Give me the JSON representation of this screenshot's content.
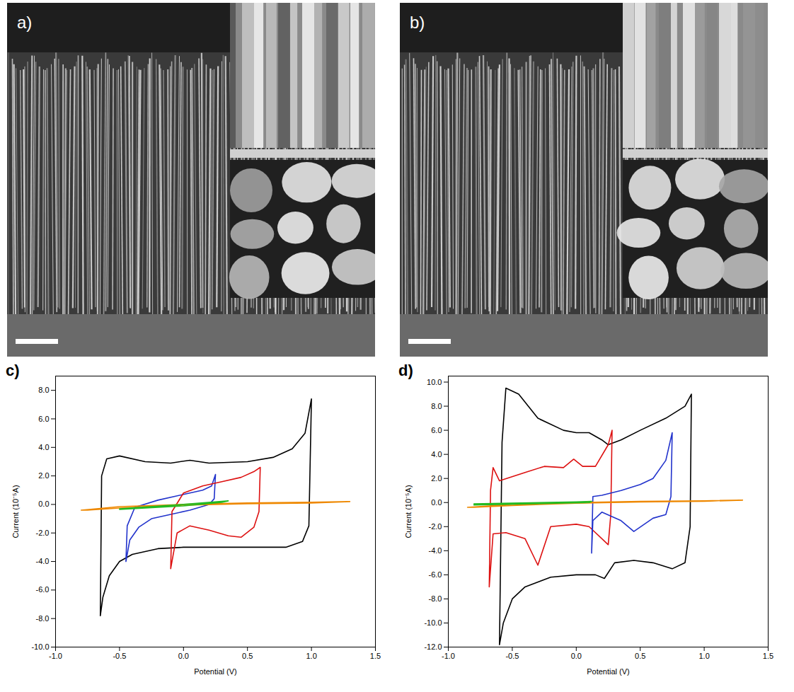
{
  "images": [
    {
      "label": "a)"
    },
    {
      "label": "b)"
    }
  ],
  "chart_data": [
    {
      "type": "line",
      "title": "c)",
      "x_label": "Potential (V)",
      "y_label": "Current (10⁻⁵A)",
      "xlim": [
        -1.0,
        1.5
      ],
      "xticks": [
        {
          "value": -1.0,
          "label": "-1.0"
        },
        -0.5,
        {
          "value": 0.0,
          "label": "0.0"
        },
        0.5,
        {
          "value": 1.0,
          "label": "1.0"
        },
        1.5
      ],
      "ylim": [
        -10.0,
        9.0
      ],
      "yticks": [
        {
          "value": -10.0,
          "label": "-10.0"
        },
        {
          "value": -8.0,
          "label": "-8.0"
        },
        {
          "value": -6.0,
          "label": "-6.0"
        },
        {
          "value": -4.0,
          "label": "-4.0"
        },
        {
          "value": -2.0,
          "label": "-2.0"
        },
        {
          "value": 0.0,
          "label": "0.0"
        },
        {
          "value": 2.0,
          "label": "2.0"
        },
        {
          "value": 4.0,
          "label": "4.0"
        },
        {
          "value": 6.0,
          "label": "6.0"
        },
        {
          "value": 8.0,
          "label": "8.0"
        }
      ],
      "grid": false,
      "series": [
        {
          "color": "#000000",
          "x": [
            -0.65,
            -0.64,
            -0.6,
            -0.5,
            -0.3,
            -0.1,
            0.05,
            0.2,
            0.5,
            0.7,
            0.85,
            0.95,
            1.0,
            0.98,
            0.93,
            0.8,
            0.5,
            0.2,
            0.0,
            -0.2,
            -0.4,
            -0.5,
            -0.58,
            -0.63,
            -0.65
          ],
          "values": [
            -7.8,
            2.0,
            3.2,
            3.4,
            3.0,
            2.9,
            3.1,
            2.9,
            3.0,
            3.3,
            3.9,
            5.0,
            7.4,
            -1.5,
            -2.6,
            -3.0,
            -3.0,
            -3.0,
            -3.0,
            -3.1,
            -3.5,
            -4.0,
            -5.0,
            -6.5,
            -7.8
          ]
        },
        {
          "color": "#2233cc",
          "x": [
            -0.45,
            -0.44,
            -0.38,
            -0.2,
            0.0,
            0.15,
            0.22,
            0.25,
            0.24,
            0.2,
            0.05,
            -0.1,
            -0.25,
            -0.35,
            -0.42,
            -0.45
          ],
          "values": [
            -4.0,
            -1.5,
            -0.2,
            0.3,
            0.7,
            1.0,
            1.3,
            2.1,
            0.4,
            0.0,
            -0.4,
            -0.7,
            -1.0,
            -1.6,
            -2.5,
            -4.0
          ]
        },
        {
          "color": "#dd1111",
          "x": [
            -0.1,
            -0.09,
            0.0,
            0.15,
            0.3,
            0.45,
            0.55,
            0.6,
            0.59,
            0.55,
            0.45,
            0.35,
            0.2,
            0.05,
            -0.05,
            -0.1
          ],
          "values": [
            -4.5,
            -0.5,
            0.8,
            1.3,
            1.6,
            1.9,
            2.3,
            2.6,
            -0.5,
            -1.6,
            -2.3,
            -2.2,
            -1.8,
            -1.5,
            -2.0,
            -4.5
          ]
        },
        {
          "color": "#ee8800",
          "x": [
            -0.8,
            -0.5,
            0.0,
            0.5,
            1.0,
            1.3,
            1.0,
            0.5,
            0.0,
            -0.5,
            -0.75,
            -0.8
          ],
          "values": [
            -0.4,
            -0.15,
            0.0,
            0.1,
            0.15,
            0.2,
            0.1,
            0.05,
            -0.05,
            -0.25,
            -0.4,
            -0.4
          ]
        },
        {
          "color": "#22bb22",
          "x": [
            -0.5,
            0.0,
            0.35,
            0.3,
            0.0,
            -0.5
          ],
          "values": [
            -0.3,
            0.0,
            0.25,
            0.15,
            -0.1,
            -0.35
          ]
        }
      ]
    },
    {
      "type": "line",
      "title": "d)",
      "x_label": "Potential (V)",
      "y_label": "Current (10⁻⁵A)",
      "xlim": [
        -1.0,
        1.5
      ],
      "xticks": [
        {
          "value": -1.0,
          "label": "-1.0"
        },
        -0.5,
        {
          "value": 0.0,
          "label": "0.0"
        },
        0.5,
        {
          "value": 1.0,
          "label": "1.0"
        },
        1.5
      ],
      "ylim": [
        -12.0,
        10.5
      ],
      "yticks": [
        {
          "value": -12.0,
          "label": "-12.0"
        },
        {
          "value": -10.0,
          "label": "-10.0"
        },
        {
          "value": -8.0,
          "label": "-8.0"
        },
        {
          "value": -6.0,
          "label": "-6.0"
        },
        {
          "value": -4.0,
          "label": "-4.0"
        },
        {
          "value": -2.0,
          "label": "-2.0"
        },
        {
          "value": 0.0,
          "label": "0.0"
        },
        {
          "value": 2.0,
          "label": "2.0"
        },
        {
          "value": 4.0,
          "label": "4.0"
        },
        {
          "value": 6.0,
          "label": "6.0"
        },
        {
          "value": 8.0,
          "label": "8.0"
        },
        {
          "value": 10.0,
          "label": "10.0"
        }
      ],
      "grid": false,
      "series": [
        {
          "color": "#000000",
          "x": [
            -0.6,
            -0.58,
            -0.55,
            -0.45,
            -0.3,
            -0.1,
            0.0,
            0.1,
            0.2,
            0.25,
            0.35,
            0.5,
            0.7,
            0.85,
            0.9,
            0.89,
            0.85,
            0.75,
            0.6,
            0.45,
            0.3,
            0.22,
            0.15,
            0.0,
            -0.2,
            -0.4,
            -0.5,
            -0.57,
            -0.6
          ],
          "values": [
            -11.8,
            5.0,
            9.5,
            9.0,
            7.0,
            6.0,
            5.8,
            5.8,
            5.2,
            4.8,
            5.2,
            6.0,
            7.0,
            8.0,
            9.0,
            -2.0,
            -5.0,
            -5.5,
            -5.0,
            -4.8,
            -5.0,
            -6.3,
            -6.0,
            -6.0,
            -6.2,
            -7.0,
            -8.0,
            -10.0,
            -11.8
          ]
        },
        {
          "color": "#dd1111",
          "x": [
            -0.68,
            -0.67,
            -0.65,
            -0.6,
            -0.4,
            -0.25,
            -0.1,
            -0.02,
            0.05,
            0.15,
            0.25,
            0.28,
            0.27,
            0.25,
            0.1,
            0.0,
            -0.2,
            -0.3,
            -0.4,
            -0.55,
            -0.65,
            -0.68
          ],
          "values": [
            -7.0,
            1.0,
            2.9,
            1.8,
            2.5,
            3.0,
            2.9,
            3.6,
            3.0,
            3.0,
            4.8,
            6.0,
            -1.0,
            -3.5,
            -2.0,
            -1.8,
            -2.0,
            -5.2,
            -3.0,
            -2.5,
            -2.6,
            -7.0
          ]
        },
        {
          "color": "#2233cc",
          "x": [
            0.12,
            0.13,
            0.2,
            0.35,
            0.5,
            0.6,
            0.7,
            0.75,
            0.74,
            0.7,
            0.6,
            0.45,
            0.35,
            0.2,
            0.13,
            0.12
          ],
          "values": [
            -4.2,
            0.5,
            0.6,
            1.0,
            1.5,
            2.0,
            3.5,
            5.8,
            0.5,
            -1.0,
            -1.3,
            -2.4,
            -1.5,
            -0.8,
            -1.5,
            -4.2
          ]
        },
        {
          "color": "#ee8800",
          "x": [
            -0.85,
            -0.5,
            0.0,
            0.5,
            1.0,
            1.3,
            1.0,
            0.5,
            0.0,
            -0.5,
            -0.8,
            -0.85
          ],
          "values": [
            -0.4,
            -0.15,
            0.0,
            0.1,
            0.15,
            0.2,
            0.1,
            0.05,
            -0.05,
            -0.25,
            -0.4,
            -0.4
          ]
        },
        {
          "color": "#22bb22",
          "x": [
            -0.8,
            0.0,
            0.12,
            0.1,
            -0.8
          ],
          "values": [
            -0.1,
            0.05,
            0.1,
            0.0,
            -0.2
          ]
        }
      ]
    }
  ]
}
